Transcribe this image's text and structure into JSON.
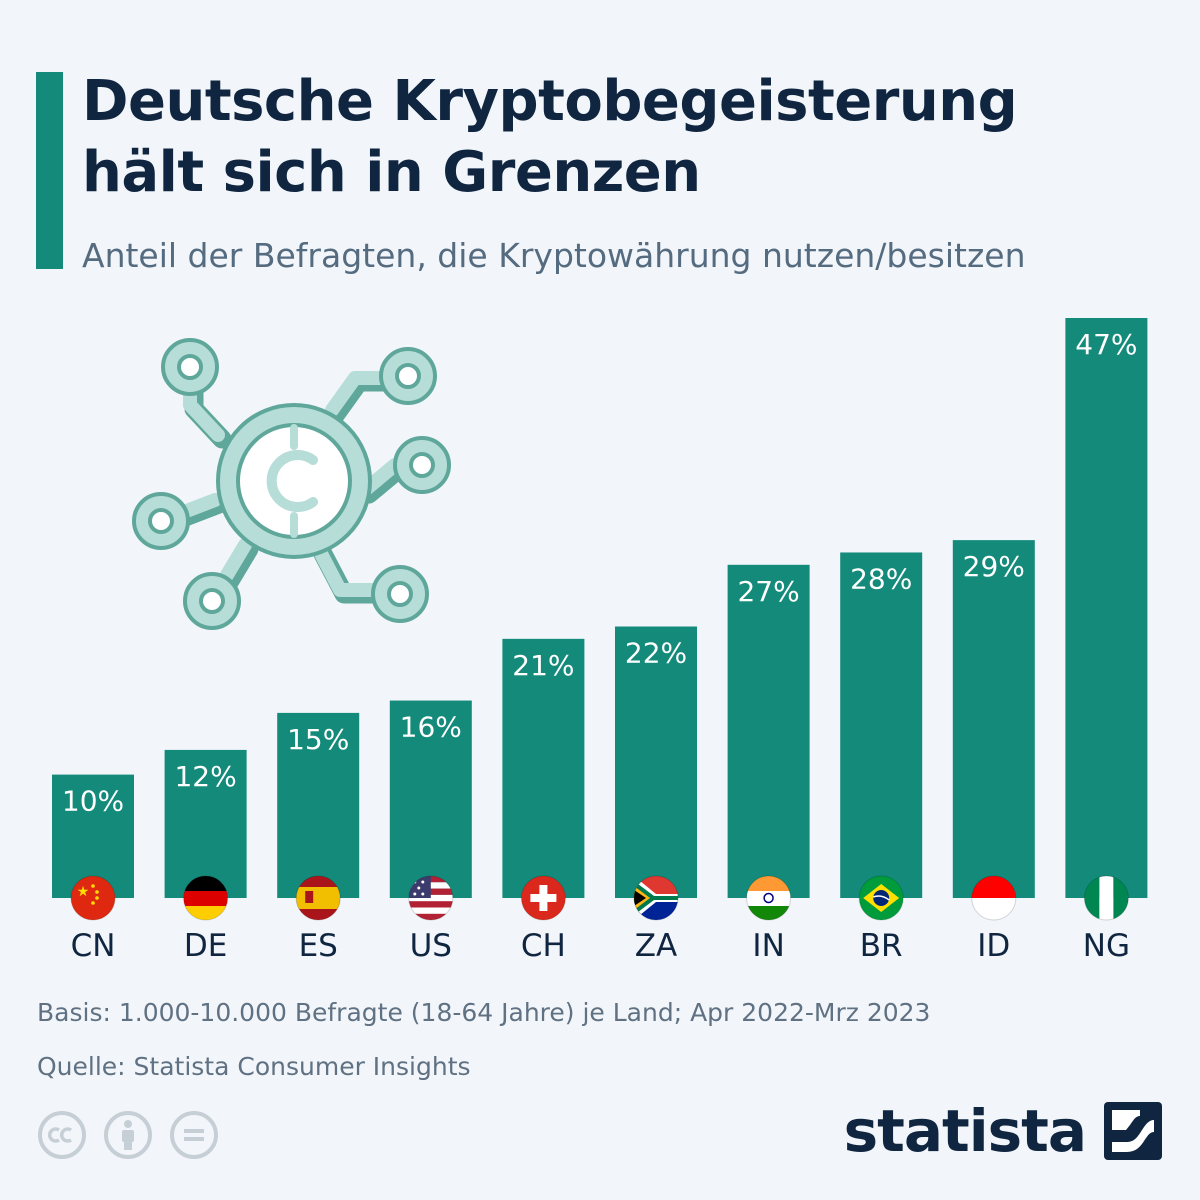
{
  "header": {
    "title_line1": "Deutsche Kryptobegeisterung",
    "title_line2": "hält sich in Grenzen",
    "subtitle": "Anteil der Befragten, die Kryptowährung nutzen/besitzen"
  },
  "chart_data": {
    "type": "bar",
    "title": "Deutsche Kryptobegeisterung hält sich in Grenzen",
    "subtitle": "Anteil der Befragten, die Kryptowährung nutzen/besitzen",
    "categories": [
      "CN",
      "DE",
      "ES",
      "US",
      "CH",
      "ZA",
      "IN",
      "BR",
      "ID",
      "NG"
    ],
    "values": [
      10,
      12,
      15,
      16,
      21,
      22,
      27,
      28,
      29,
      47
    ],
    "value_labels": [
      "10%",
      "12%",
      "15%",
      "16%",
      "21%",
      "22%",
      "27%",
      "28%",
      "29%",
      "47%"
    ],
    "unit": "%",
    "xlabel": "",
    "ylabel": "",
    "ylim": [
      0,
      47
    ],
    "grid": false,
    "bar_color": "#138a7a"
  },
  "footer": {
    "basis": "Basis: 1.000-10.000 Befragte (18-64 Jahre) je Land; Apr 2022-Mrz 2023",
    "source": "Quelle: Statista Consumer Insights"
  },
  "brand": {
    "name": "statista"
  },
  "icons": {
    "illustration": "crypto-network-icon",
    "license": [
      "cc-icon",
      "attribution-icon",
      "no-derivatives-icon"
    ],
    "brand_logo": "statista-logo-icon"
  },
  "colors": {
    "background": "#f2f6fa",
    "accent": "#138a7a",
    "title": "#0f2540",
    "subtitle": "#556b80",
    "illustration_fill": "#b6ddd7",
    "illustration_stroke": "#5fa79b"
  }
}
